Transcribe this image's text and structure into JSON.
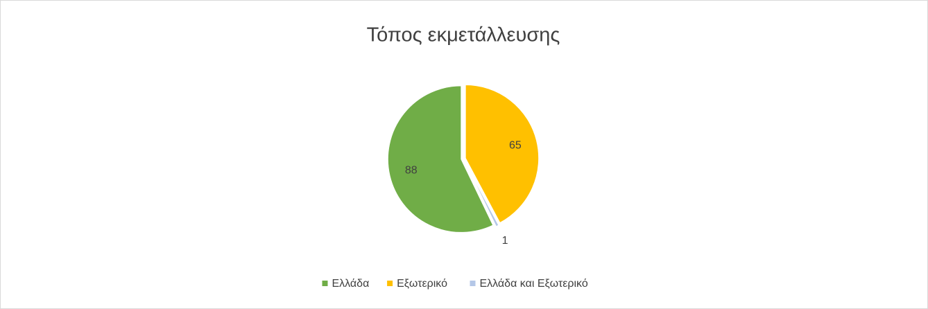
{
  "chart_data": {
    "type": "pie",
    "title": "Τόπος εκμετάλλευσης",
    "categories": [
      "Ελλάδα",
      "Εξωτερικό",
      "Ελλάδα και Εξωτερικό"
    ],
    "values": [
      88,
      65,
      1
    ],
    "colors": [
      "#70ad47",
      "#ffc000",
      "#b4c7e7"
    ],
    "legend": "bottom"
  }
}
